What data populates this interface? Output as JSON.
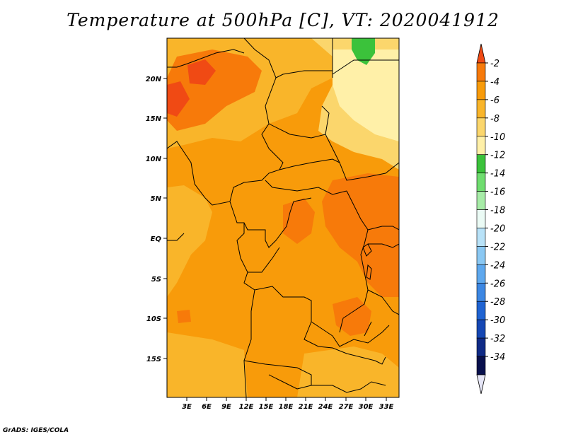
{
  "title": "Temperature at 500hPa [C], VT: 2020041912",
  "credit": "GrADS: IGES/COLA",
  "lat_labels": [
    "20N",
    "15N",
    "10N",
    "5N",
    "EQ",
    "5S",
    "10S",
    "15S"
  ],
  "lon_labels": [
    "3E",
    "6E",
    "9E",
    "12E",
    "15E",
    "18E",
    "21E",
    "24E",
    "27E",
    "30E",
    "33E"
  ],
  "colorbar": {
    "labels": [
      "-2",
      "-4",
      "-6",
      "-8",
      "-10",
      "-12",
      "-14",
      "-16",
      "-18",
      "-20",
      "-22",
      "-24",
      "-26",
      "-28",
      "-30",
      "-32",
      "-34"
    ],
    "colors": [
      "#f04a14",
      "#f77a0a",
      "#f89b0a",
      "#f9b52a",
      "#fbd66c",
      "#fff0a8",
      "#3bc23b",
      "#6fdd6f",
      "#a7eca7",
      "#ebfbf5",
      "#b8e2f8",
      "#8ac8f3",
      "#5ea8ee",
      "#3c87e3",
      "#1f63d2",
      "#1547b4",
      "#0f2a86",
      "#08104d"
    ],
    "over_color": "#f04a14",
    "under_color": "#e6e6f7"
  }
}
